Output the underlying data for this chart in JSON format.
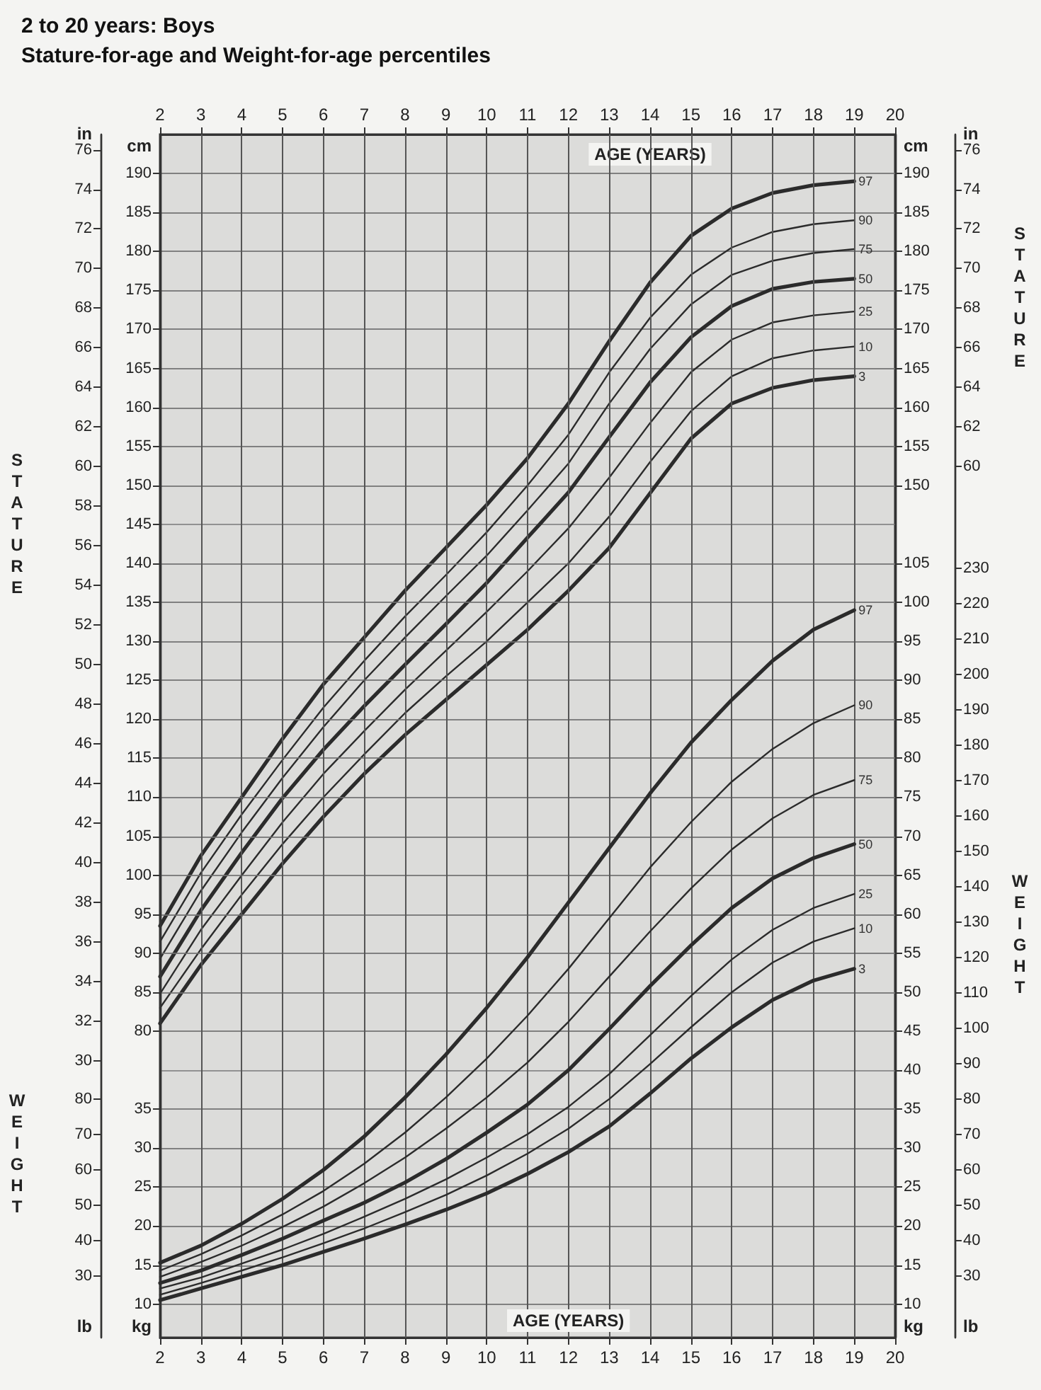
{
  "chart_data": [
    {
      "type": "line",
      "title": "2 to 20 years: Boys",
      "subtitle": "Stature-for-age and Weight-for-age percentiles",
      "x2label": "AGE (YEARS)",
      "annotations": [
        "STATURE",
        "STATURE"
      ],
      "x": [
        2,
        3,
        4,
        5,
        6,
        7,
        8,
        9,
        10,
        11,
        12,
        13,
        14,
        15,
        16,
        17,
        18,
        19
      ],
      "xlim": [
        2,
        20
      ],
      "x2lim": [
        2,
        20
      ],
      "x2ticks": [
        2,
        3,
        4,
        5,
        6,
        7,
        8,
        9,
        10,
        11,
        12,
        13,
        14,
        15,
        16,
        17,
        18,
        19,
        20
      ],
      "ylabel": "cm",
      "ylim": [
        40.7,
        195
      ],
      "yticks": [
        80,
        85,
        90,
        95,
        100,
        105,
        110,
        115,
        120,
        125,
        130,
        135,
        140,
        145,
        150,
        155,
        160,
        165,
        170,
        175,
        180,
        185,
        190
      ],
      "y2label": "cm",
      "y2lim": [
        40.7,
        195
      ],
      "y2ticks": [
        150,
        155,
        160,
        165,
        170,
        175,
        180,
        185,
        190
      ],
      "grid": true,
      "marker": "none",
      "line_style": "solid",
      "series": [
        {
          "name": "97",
          "color": "#2b2b2b",
          "values": [
            93.5,
            102.5,
            110,
            117.5,
            124.5,
            130.5,
            136.5,
            142,
            147.5,
            153.5,
            160.5,
            168.5,
            176,
            182,
            185.5,
            187.5,
            188.5,
            189
          ]
        },
        {
          "name": "90",
          "color": "#2b2b2b",
          "values": [
            91.5,
            100.3,
            107.8,
            114.8,
            121.5,
            127.5,
            133.2,
            138.5,
            144,
            150,
            156.5,
            164.5,
            171.5,
            177,
            180.5,
            182.5,
            183.5,
            184
          ]
        },
        {
          "name": "75",
          "color": "#2b2b2b",
          "values": [
            89.3,
            98,
            105.5,
            112.5,
            119,
            125,
            130.5,
            135.8,
            141,
            146.8,
            152.8,
            160.5,
            167.5,
            173.2,
            177,
            178.8,
            179.8,
            180.3
          ]
        },
        {
          "name": "50",
          "color": "#2b2b2b",
          "values": [
            87,
            95.5,
            102.9,
            109.9,
            116.1,
            121.7,
            127,
            132.2,
            137.5,
            143.3,
            149.1,
            156.2,
            163.2,
            169,
            173,
            175.2,
            176.1,
            176.5
          ]
        },
        {
          "name": "25",
          "color": "#2b2b2b",
          "values": [
            84.8,
            93,
            100,
            106.8,
            113,
            118.5,
            123.8,
            128.8,
            133.8,
            139,
            144.5,
            151,
            158,
            164.5,
            168.7,
            170.9,
            171.8,
            172.3
          ]
        },
        {
          "name": "10",
          "color": "#2b2b2b",
          "values": [
            83,
            90.5,
            97.5,
            104,
            110,
            115.5,
            120.8,
            125.5,
            130,
            135,
            140,
            146,
            153,
            159.5,
            164,
            166.3,
            167.3,
            167.8
          ]
        },
        {
          "name": "3",
          "color": "#2b2b2b",
          "values": [
            81,
            88.5,
            95,
            101.5,
            107.5,
            113,
            118,
            122.5,
            127,
            131.5,
            136.5,
            142,
            149,
            156,
            160.5,
            162.5,
            163.5,
            164
          ]
        }
      ]
    },
    {
      "type": "line",
      "xlim": [
        2,
        20
      ],
      "tick_labels": "y",
      "ylabel": "in",
      "ylim": [
        16.02,
        76.77
      ],
      "yticks": [
        30,
        32,
        34,
        36,
        38,
        40,
        42,
        44,
        46,
        48,
        50,
        52,
        54,
        56,
        58,
        60,
        62,
        64,
        66,
        68,
        70,
        72,
        74,
        76
      ],
      "y2label": "in",
      "y2lim": [
        16.02,
        76.77
      ],
      "y2ticks": [
        60,
        62,
        64,
        66,
        68,
        70,
        72,
        74,
        76
      ]
    },
    {
      "type": "line",
      "xlabel": "AGE (YEARS)",
      "annotations": [
        "WEIGHT",
        "WEIGHT"
      ],
      "x": [
        2,
        3,
        4,
        5,
        6,
        7,
        8,
        9,
        10,
        11,
        12,
        13,
        14,
        15,
        16,
        17,
        18,
        19
      ],
      "xlim": [
        2,
        20
      ],
      "xticks": [
        2,
        3,
        4,
        5,
        6,
        7,
        8,
        9,
        10,
        11,
        12,
        13,
        14,
        15,
        16,
        17,
        18,
        19,
        20
      ],
      "ylabel": "kg",
      "ylim": [
        5.7,
        160
      ],
      "yticks": [
        10,
        15,
        20,
        25,
        30,
        35
      ],
      "y2label": "kg",
      "y2lim": [
        5.7,
        160
      ],
      "y2ticks": [
        10,
        15,
        20,
        25,
        30,
        35,
        40,
        45,
        50,
        55,
        60,
        65,
        70,
        75,
        80,
        85,
        90,
        95,
        100,
        105
      ],
      "grid": true,
      "marker": "none",
      "line_style": "solid",
      "series": [
        {
          "name": "97",
          "color": "#2b2b2b",
          "values": [
            15.3,
            17.5,
            20.3,
            23.5,
            27.2,
            31.5,
            36.5,
            42,
            48,
            54.5,
            61.5,
            68.5,
            75.5,
            82,
            87.5,
            92.5,
            96.5,
            99
          ]
        },
        {
          "name": "90",
          "color": "#2b2b2b",
          "values": [
            14.3,
            16.4,
            18.8,
            21.5,
            24.5,
            28,
            32,
            36.5,
            41.5,
            47,
            53,
            59.5,
            66,
            71.8,
            77,
            81.2,
            84.5,
            86.8
          ]
        },
        {
          "name": "75",
          "color": "#2b2b2b",
          "values": [
            13.5,
            15.4,
            17.5,
            19.9,
            22.5,
            25.5,
            28.8,
            32.5,
            36.5,
            41,
            46.2,
            52,
            57.8,
            63.3,
            68.3,
            72.3,
            75.3,
            77.2
          ]
        },
        {
          "name": "50",
          "color": "#2b2b2b",
          "values": [
            12.7,
            14.3,
            16.3,
            18.4,
            20.7,
            23,
            25.6,
            28.6,
            32,
            35.6,
            40,
            45.3,
            50.8,
            56,
            60.8,
            64.6,
            67.2,
            69
          ]
        },
        {
          "name": "25",
          "color": "#2b2b2b",
          "values": [
            12,
            13.4,
            15.2,
            17,
            19,
            21.2,
            23.5,
            26,
            28.8,
            31.8,
            35.3,
            39.5,
            44.5,
            49.5,
            54.2,
            58,
            60.8,
            62.6
          ]
        },
        {
          "name": "10",
          "color": "#2b2b2b",
          "values": [
            11.2,
            12.7,
            14.3,
            16,
            17.8,
            19.7,
            21.8,
            24,
            26.5,
            29.3,
            32.5,
            36.3,
            40.8,
            45.5,
            50,
            53.8,
            56.5,
            58.2
          ]
        },
        {
          "name": "3",
          "color": "#2b2b2b",
          "values": [
            10.5,
            12,
            13.5,
            15,
            16.7,
            18.4,
            20.2,
            22.1,
            24.2,
            26.7,
            29.5,
            32.8,
            37,
            41.5,
            45.5,
            49,
            51.5,
            53
          ]
        }
      ]
    },
    {
      "type": "line",
      "xlim": [
        2,
        20
      ],
      "tick_labels": "y",
      "ylabel": "lb",
      "ylim": [
        12.57,
        352.7
      ],
      "yticks": [
        30,
        40,
        50,
        60,
        70,
        80
      ],
      "y2label": "lb",
      "y2lim": [
        12.57,
        352.7
      ],
      "y2ticks": [
        30,
        40,
        50,
        60,
        70,
        80,
        90,
        100,
        110,
        120,
        130,
        140,
        150,
        160,
        170,
        180,
        190,
        200,
        210,
        220,
        230
      ]
    }
  ]
}
